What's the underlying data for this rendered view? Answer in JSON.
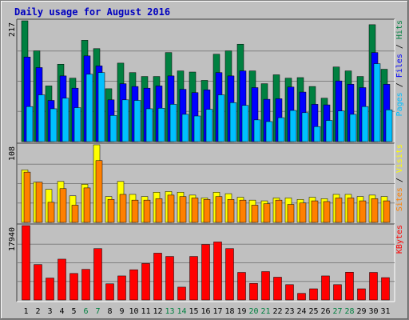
{
  "chart_data": {
    "type": "bar",
    "title": "Daily usage for August 2016",
    "weekend_color": "#008040",
    "weekday_color": "#000000",
    "weekend_days": [
      "6",
      "7",
      "13",
      "14",
      "20",
      "21",
      "27",
      "28"
    ],
    "categories": [
      "1",
      "2",
      "3",
      "4",
      "5",
      "6",
      "7",
      "8",
      "9",
      "10",
      "11",
      "12",
      "13",
      "14",
      "15",
      "16",
      "17",
      "18",
      "19",
      "20",
      "21",
      "22",
      "23",
      "24",
      "25",
      "26",
      "27",
      "28",
      "29",
      "30",
      "31"
    ],
    "panels": [
      {
        "name": "hits-files-pages",
        "max_label": "217",
        "ylim": [
          0,
          217
        ],
        "legend": [
          {
            "text": "Pages",
            "color": "#00c0ff"
          },
          {
            "text": " / ",
            "color": "#000000"
          },
          {
            "text": "Files",
            "color": "#0000ff"
          },
          {
            "text": " / ",
            "color": "#000000"
          },
          {
            "text": "Hits",
            "color": "#008040"
          }
        ],
        "series": [
          {
            "name": "Hits",
            "color": "#008040",
            "values": [
              217,
              163,
              100,
              139,
              114,
              182,
              167,
              95,
              141,
              124,
              117,
              117,
              160,
              127,
              125,
              110,
              157,
              163,
              175,
              127,
              104,
              120,
              114,
              115,
              99,
              78,
              134,
              127,
              117,
              210,
              130
            ]
          },
          {
            "name": "Files",
            "color": "#0000ff",
            "values": [
              152,
              133,
              74,
              118,
              96,
              154,
              136,
              75,
              104,
              99,
              96,
              100,
              118,
              94,
              88,
              93,
              124,
              118,
              127,
              97,
              76,
              77,
              98,
              89,
              67,
              66,
              109,
              103,
              97,
              160,
              103
            ]
          },
          {
            "name": "Pages",
            "color": "#00c0ff",
            "values": [
              63,
              84,
              59,
              78,
              61,
              121,
              124,
              47,
              75,
              74,
              59,
              60,
              67,
              49,
              46,
              58,
              84,
              70,
              65,
              39,
              36,
              43,
              56,
              52,
              27,
              38,
              55,
              49,
              63,
              140,
              57
            ]
          }
        ]
      },
      {
        "name": "visits-sites",
        "max_label": "108",
        "ylim": [
          0,
          108
        ],
        "legend": [
          {
            "text": "Sites",
            "color": "#ff8000"
          },
          {
            "text": " / ",
            "color": "#000000"
          },
          {
            "text": "Visits",
            "color": "#ffff00"
          }
        ],
        "series": [
          {
            "name": "Visits",
            "color": "#ffff00",
            "values": [
              73,
              56,
              46,
              57,
              37,
              53,
              108,
              36,
              57,
              39,
              36,
              42,
              43,
              42,
              38,
              34,
              42,
              40,
              35,
              31,
              30,
              34,
              34,
              32,
              35,
              33,
              39,
              39,
              36,
              38,
              36
            ]
          },
          {
            "name": "Sites",
            "color": "#ff8000",
            "values": [
              70,
              56,
              28,
              47,
              24,
              48,
              86,
              32,
              39,
              31,
              31,
              33,
              38,
              36,
              34,
              32,
              36,
              32,
              31,
              24,
              26,
              31,
              25,
              27,
              30,
              29,
              34,
              34,
              30,
              33,
              30
            ]
          }
        ]
      },
      {
        "name": "kbytes",
        "max_label": "17940",
        "ylim": [
          0,
          17940
        ],
        "legend": [
          {
            "text": "KBytes",
            "color": "#ff0000"
          }
        ],
        "series": [
          {
            "name": "KBytes",
            "color": "#ff0000",
            "values": [
              17940,
              8550,
              5300,
              9850,
              6400,
              7400,
              12400,
              3900,
              5800,
              7300,
              8800,
              11300,
              10500,
              3100,
              10500,
              13400,
              14000,
              12400,
              6650,
              4000,
              6850,
              5500,
              3700,
              1600,
              2700,
              5800,
              3700,
              6700,
              2700,
              6650,
              5400
            ]
          }
        ]
      }
    ]
  }
}
